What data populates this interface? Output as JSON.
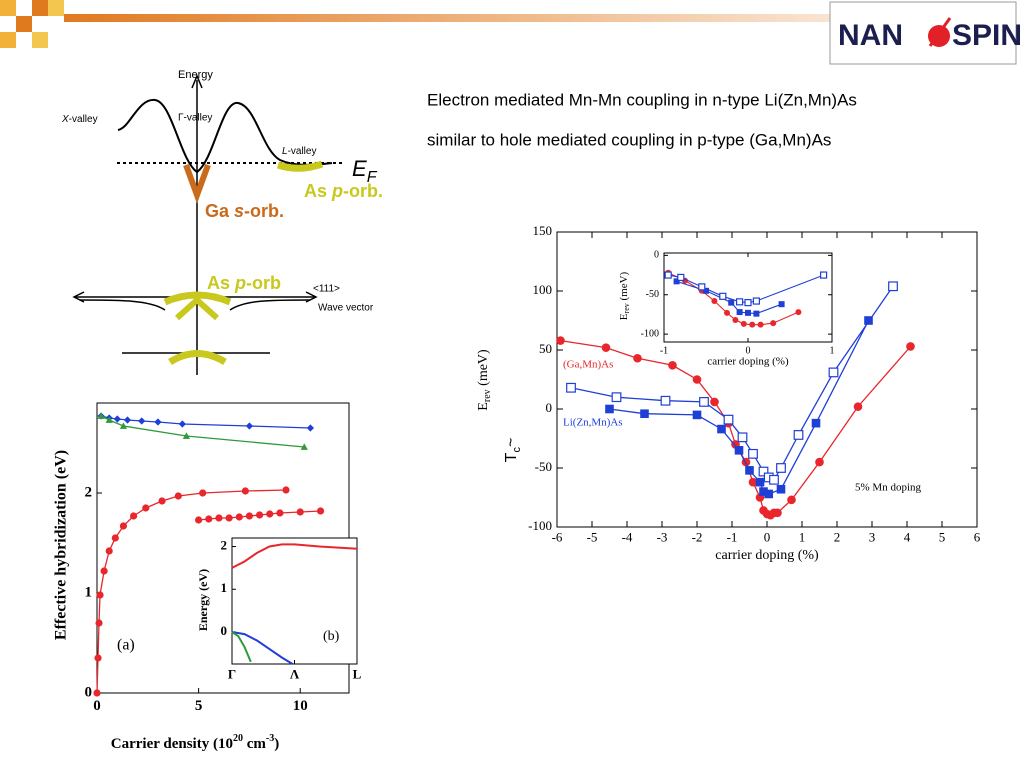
{
  "header": {
    "logo": [
      "NAN",
      "SPIN"
    ],
    "lines": [
      "Electron mediated Mn-Mn coupling in n-type Li(Zn,Mn)As",
      "similar to hole mediated coupling in p-type (Ga,Mn)As"
    ]
  },
  "band_diagram": {
    "energy": "Energy",
    "x_valley": [
      "X",
      "-valley"
    ],
    "gamma_valley": "Γ-valley",
    "l_valley": [
      "L",
      "-valley"
    ],
    "fermi": [
      "E",
      "F"
    ],
    "as_p_orb_top": [
      "As ",
      "p",
      "-orb."
    ],
    "ga_s_orb": [
      "Ga ",
      "s",
      "-orb."
    ],
    "as_p_orb_bottom": [
      "As ",
      "p",
      "-orb"
    ],
    "direction": "<111>",
    "wave_vector": "Wave vector"
  },
  "chart_data": [
    {
      "type": "line",
      "x_label": "carrier doping (%)",
      "y_label": [
        "E",
        "rev",
        " (meV)"
      ],
      "y_label_prefix": [
        "T",
        "c",
        "~"
      ],
      "xlim": [
        -6,
        6
      ],
      "xticks": [
        -6,
        -5,
        -4,
        -3,
        -2,
        -1,
        0,
        1,
        2,
        3,
        4,
        5,
        6
      ],
      "ylim": [
        -100,
        150
      ],
      "yticks": [
        -100,
        -50,
        0,
        50,
        100,
        150
      ],
      "annotations": [
        "5% Mn doping"
      ],
      "series": [
        {
          "name": "(Ga,Mn)As",
          "color": "#e8262b",
          "marker": "circle",
          "x": [
            -5.9,
            -4.6,
            -3.7,
            -2.7,
            -2,
            -1.5,
            -1.1,
            -0.9,
            -0.6,
            -0.4,
            -0.2,
            -0.1,
            0,
            0.1,
            0.2,
            0.3,
            0.7,
            1.5,
            2.6,
            4.1
          ],
          "values": [
            58,
            52,
            43,
            37,
            25,
            6,
            -12,
            -30,
            -45,
            -62,
            -75,
            -86,
            -89,
            -90,
            -88,
            -88,
            -77,
            -45,
            2,
            53
          ]
        },
        {
          "name": "Li(Zn,Mn)As",
          "color": "#1f3fd6",
          "marker": "square",
          "x": [
            -4.5,
            -3.5,
            -2,
            -1.3,
            -0.8,
            -0.5,
            -0.2,
            -0.1,
            0.05,
            0.4,
            1.4,
            2.9
          ],
          "values": [
            0,
            -4,
            -5,
            -17,
            -35,
            -52,
            -62,
            -70,
            -72,
            -68,
            -12,
            75
          ]
        },
        {
          "color": "#1f3fd6",
          "marker": "square-open",
          "x": [
            -5.6,
            -4.3,
            -2.9,
            -1.8,
            -1.1,
            -0.7,
            -0.4,
            -0.1,
            0.05,
            0.2,
            0.4,
            0.9,
            1.9,
            3.6
          ],
          "values": [
            18,
            10,
            7,
            6,
            -9,
            -24,
            -38,
            -53,
            -58,
            -60,
            -50,
            -22,
            31,
            104
          ]
        }
      ]
    },
    {
      "type": "line",
      "x_label": "carrier doping (%)",
      "y_label": [
        "E",
        "rev",
        " (meV)"
      ],
      "xlim": [
        -1,
        1
      ],
      "xticks": [
        -1,
        0,
        1
      ],
      "ylim": [
        -110,
        3
      ],
      "yticks": [
        0,
        -50,
        -100
      ],
      "series": [
        {
          "color": "#e8262b",
          "marker": "circle",
          "x": [
            -0.95,
            -0.75,
            -0.55,
            -0.4,
            -0.25,
            -0.15,
            -0.05,
            0.05,
            0.15,
            0.3,
            0.6
          ],
          "values": [
            -22,
            -32,
            -45,
            -58,
            -73,
            -82,
            -87,
            -88,
            -88,
            -86,
            -72
          ]
        },
        {
          "color": "#1f3fd6",
          "marker": "square",
          "x": [
            -0.85,
            -0.5,
            -0.2,
            -0.1,
            0,
            0.1,
            0.4
          ],
          "values": [
            -33,
            -45,
            -60,
            -72,
            -73,
            -74,
            -62
          ]
        },
        {
          "color": "#1f3fd6",
          "marker": "square-open",
          "x": [
            -0.95,
            -0.8,
            -0.55,
            -0.3,
            -0.1,
            0,
            0.1,
            0.9
          ],
          "values": [
            -25,
            -28,
            -40,
            -52,
            -59,
            -60,
            -58,
            -25
          ]
        }
      ]
    },
    {
      "type": "line",
      "x_label": [
        "Carrier density (10",
        "20",
        " cm",
        "-3",
        ")"
      ],
      "y_label": "Effective hybridization (eV)",
      "xlim": [
        0,
        12.4
      ],
      "xticks": [
        0,
        5,
        10
      ],
      "ylim": [
        0,
        2.9
      ],
      "yticks": [
        0,
        1,
        2
      ],
      "annotations": [
        "(a)"
      ],
      "series": [
        {
          "color": "#e8262b",
          "marker": "circle",
          "x": [
            0,
            0.05,
            0.1,
            0.15,
            0.35,
            0.6,
            0.9,
            1.3,
            1.8,
            2.4,
            3.2,
            4,
            5.2,
            7.3,
            9.3
          ],
          "values": [
            0,
            0.35,
            0.7,
            0.98,
            1.22,
            1.42,
            1.55,
            1.67,
            1.77,
            1.85,
            1.92,
            1.97,
            2.0,
            2.02,
            2.03
          ]
        },
        {
          "color": "#e8262b",
          "marker": "circle",
          "x": [
            5,
            5.5,
            6,
            6.5,
            7,
            7.5,
            8,
            8.5,
            9,
            10,
            11
          ],
          "values": [
            1.73,
            1.74,
            1.75,
            1.75,
            1.76,
            1.77,
            1.78,
            1.79,
            1.8,
            1.81,
            1.82
          ]
        },
        {
          "color": "#1f3fd6",
          "marker": "diamond",
          "x": [
            0.2,
            0.6,
            1,
            1.5,
            2.2,
            3,
            4.2,
            7.5,
            10.5
          ],
          "values": [
            2.77,
            2.75,
            2.74,
            2.73,
            2.72,
            2.71,
            2.69,
            2.67,
            2.65
          ]
        },
        {
          "color": "#2e9a3a",
          "marker": "triangle",
          "x": [
            0.2,
            0.6,
            1.3,
            4.4,
            10.2
          ],
          "values": [
            2.77,
            2.73,
            2.67,
            2.57,
            2.46
          ]
        }
      ]
    },
    {
      "type": "line",
      "y_label": "Energy (eV)",
      "annotations": [
        "(b)"
      ],
      "xlim": [
        0,
        2
      ],
      "xticks": [
        {
          "value": 0,
          "label": "Γ"
        },
        {
          "value": 1,
          "label": "Λ"
        },
        {
          "value": 2,
          "label": "L"
        }
      ],
      "ylim": [
        -0.75,
        2.2
      ],
      "yticks": [
        0,
        1,
        2
      ],
      "series": [
        {
          "color": "#e8262b",
          "marker": "none",
          "x": [
            0,
            0.2,
            0.4,
            0.6,
            0.8,
            1,
            1.4,
            2
          ],
          "values": [
            1.5,
            1.65,
            1.85,
            2.0,
            2.05,
            2.05,
            2.0,
            1.95
          ]
        },
        {
          "color": "#1f3fd6",
          "marker": "none",
          "x": [
            0,
            0.2,
            0.4,
            0.6,
            0.8,
            0.97
          ],
          "values": [
            0,
            -0.05,
            -0.2,
            -0.4,
            -0.6,
            -0.75
          ]
        },
        {
          "color": "#2e9a3a",
          "marker": "none",
          "x": [
            0,
            0.1,
            0.2,
            0.3
          ],
          "values": [
            0,
            -0.1,
            -0.35,
            -0.7
          ]
        }
      ]
    }
  ]
}
